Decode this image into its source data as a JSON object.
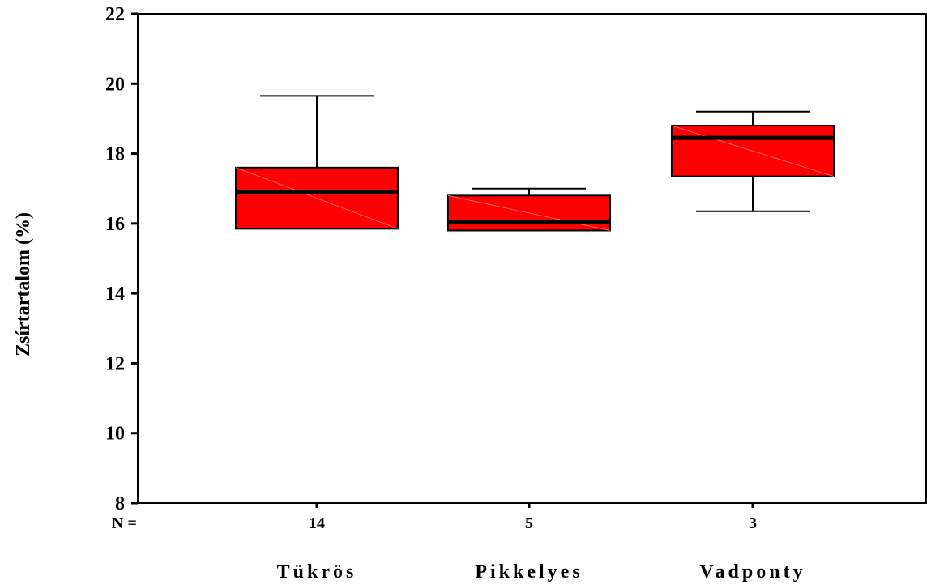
{
  "chart_data": {
    "type": "box",
    "ylabel": "Zsírtartalom (%)",
    "ylim": [
      8,
      22
    ],
    "yticks": [
      "8",
      "10",
      "12",
      "14",
      "16",
      "18",
      "20",
      "22"
    ],
    "n_prefix": "N =",
    "categories": [
      "Tükrös",
      "Pikkelyes",
      "Vadponty"
    ],
    "n_values": [
      "14",
      "5",
      "3"
    ],
    "boxes": [
      {
        "whisker_low": 15.85,
        "q1": 15.85,
        "median": 16.9,
        "q3": 17.6,
        "whisker_high": 19.65
      },
      {
        "whisker_low": 15.8,
        "q1": 15.8,
        "median": 16.05,
        "q3": 16.8,
        "whisker_high": 17.0
      },
      {
        "whisker_low": 16.35,
        "q1": 17.35,
        "median": 18.45,
        "q3": 18.8,
        "whisker_high": 19.2
      }
    ],
    "colors": {
      "box_fill": "#ff0000",
      "stroke": "#000000"
    },
    "grid": false
  }
}
